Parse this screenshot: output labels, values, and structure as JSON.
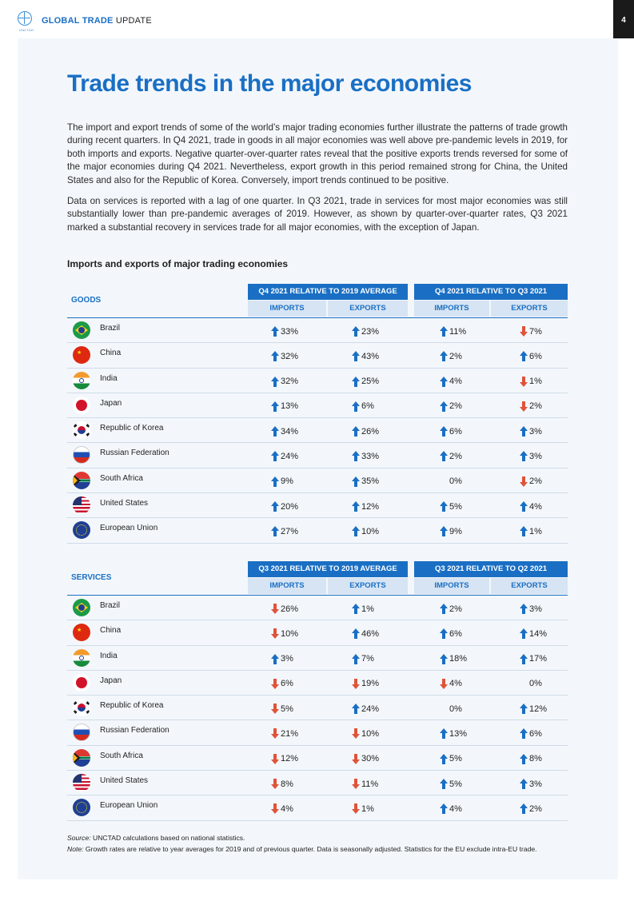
{
  "header": {
    "logo_text": "UNCTAD",
    "brand_bold": "GLOBAL TRADE",
    "brand_thin": " UPDATE",
    "page_number": "4"
  },
  "title": "Trade trends in the major economies",
  "paragraphs": [
    "The import and export trends of some of the world’s major trading economies further illustrate the patterns of trade growth during recent quarters. In Q4 2021, trade in goods in all major economies was well above pre-pandemic levels in 2019, for both imports and exports. Negative quarter-over-quarter rates reveal that the positive exports trends reversed for some of the major economies during Q4 2021. Nevertheless, export growth in this period remained strong for China, the United States and also for the Republic of Korea. Conversely, import trends continued to be positive.",
    "Data on services is reported with a lag of one quarter. In Q3 2021, trade in services for most major economies was still substantially lower than pre-pandemic averages of 2019. However, as shown by quarter-over-quarter rates, Q3 2021 marked a substantial recovery in services trade for all major economies, with the exception of Japan."
  ],
  "table_title": "Imports and exports of major trading economies",
  "goods": {
    "label": "GOODS",
    "group1": "Q4 2021 RELATIVE TO 2019 AVERAGE",
    "group2": "Q4 2021 RELATIVE TO Q3 2021",
    "sub": [
      "IMPORTS",
      "EXPORTS",
      "IMPORTS",
      "EXPORTS"
    ],
    "rows": [
      {
        "name": "Brazil",
        "flag": "brazil",
        "cells": [
          {
            "v": "33%",
            "d": "up"
          },
          {
            "v": "23%",
            "d": "up"
          },
          {
            "v": "11%",
            "d": "up"
          },
          {
            "v": "7%",
            "d": "down"
          }
        ]
      },
      {
        "name": "China",
        "flag": "china",
        "cells": [
          {
            "v": "32%",
            "d": "up"
          },
          {
            "v": "43%",
            "d": "up"
          },
          {
            "v": "2%",
            "d": "up"
          },
          {
            "v": "6%",
            "d": "up"
          }
        ]
      },
      {
        "name": "India",
        "flag": "india",
        "cells": [
          {
            "v": "32%",
            "d": "up"
          },
          {
            "v": "25%",
            "d": "up"
          },
          {
            "v": "4%",
            "d": "up"
          },
          {
            "v": "1%",
            "d": "down"
          }
        ]
      },
      {
        "name": "Japan",
        "flag": "japan",
        "cells": [
          {
            "v": "13%",
            "d": "up"
          },
          {
            "v": "6%",
            "d": "up"
          },
          {
            "v": "2%",
            "d": "up"
          },
          {
            "v": "2%",
            "d": "down"
          }
        ]
      },
      {
        "name": "Republic of Korea",
        "flag": "korea",
        "cells": [
          {
            "v": "34%",
            "d": "up"
          },
          {
            "v": "26%",
            "d": "up"
          },
          {
            "v": "6%",
            "d": "up"
          },
          {
            "v": "3%",
            "d": "up"
          }
        ]
      },
      {
        "name": "Russian Federation",
        "flag": "russia",
        "cells": [
          {
            "v": "24%",
            "d": "up"
          },
          {
            "v": "33%",
            "d": "up"
          },
          {
            "v": "2%",
            "d": "up"
          },
          {
            "v": "3%",
            "d": "up"
          }
        ]
      },
      {
        "name": "South Africa",
        "flag": "sa",
        "cells": [
          {
            "v": "9%",
            "d": "up"
          },
          {
            "v": "35%",
            "d": "up"
          },
          {
            "v": "0%",
            "d": "none"
          },
          {
            "v": "2%",
            "d": "down"
          }
        ]
      },
      {
        "name": "United States",
        "flag": "us",
        "cells": [
          {
            "v": "20%",
            "d": "up"
          },
          {
            "v": "12%",
            "d": "up"
          },
          {
            "v": "5%",
            "d": "up"
          },
          {
            "v": "4%",
            "d": "up"
          }
        ]
      },
      {
        "name": "European Union",
        "flag": "eu",
        "cells": [
          {
            "v": "27%",
            "d": "up"
          },
          {
            "v": "10%",
            "d": "up"
          },
          {
            "v": "9%",
            "d": "up"
          },
          {
            "v": "1%",
            "d": "up"
          }
        ]
      }
    ]
  },
  "services": {
    "label": "SERVICES",
    "group1": "Q3 2021 RELATIVE TO 2019 AVERAGE",
    "group2": "Q3 2021 RELATIVE TO Q2 2021",
    "sub": [
      "IMPORTS",
      "EXPORTS",
      "IMPORTS",
      "EXPORTS"
    ],
    "rows": [
      {
        "name": "Brazil",
        "flag": "brazil",
        "cells": [
          {
            "v": "26%",
            "d": "down"
          },
          {
            "v": "1%",
            "d": "up"
          },
          {
            "v": "2%",
            "d": "up"
          },
          {
            "v": "3%",
            "d": "up"
          }
        ]
      },
      {
        "name": "China",
        "flag": "china",
        "cells": [
          {
            "v": "10%",
            "d": "down"
          },
          {
            "v": "46%",
            "d": "up"
          },
          {
            "v": "6%",
            "d": "up"
          },
          {
            "v": "14%",
            "d": "up"
          }
        ]
      },
      {
        "name": "India",
        "flag": "india",
        "cells": [
          {
            "v": "3%",
            "d": "up"
          },
          {
            "v": "7%",
            "d": "up"
          },
          {
            "v": "18%",
            "d": "up"
          },
          {
            "v": "17%",
            "d": "up"
          }
        ]
      },
      {
        "name": "Japan",
        "flag": "japan",
        "cells": [
          {
            "v": "6%",
            "d": "down"
          },
          {
            "v": "19%",
            "d": "down"
          },
          {
            "v": "4%",
            "d": "down"
          },
          {
            "v": "0%",
            "d": "none"
          }
        ]
      },
      {
        "name": "Republic of Korea",
        "flag": "korea",
        "cells": [
          {
            "v": "5%",
            "d": "down"
          },
          {
            "v": "24%",
            "d": "up"
          },
          {
            "v": "0%",
            "d": "none"
          },
          {
            "v": "12%",
            "d": "up"
          }
        ]
      },
      {
        "name": "Russian Federation",
        "flag": "russia",
        "cells": [
          {
            "v": "21%",
            "d": "down"
          },
          {
            "v": "10%",
            "d": "down"
          },
          {
            "v": "13%",
            "d": "up"
          },
          {
            "v": "6%",
            "d": "up"
          }
        ]
      },
      {
        "name": "South Africa",
        "flag": "sa",
        "cells": [
          {
            "v": "12%",
            "d": "down"
          },
          {
            "v": "30%",
            "d": "down"
          },
          {
            "v": "5%",
            "d": "up"
          },
          {
            "v": "8%",
            "d": "up"
          }
        ]
      },
      {
        "name": "United States",
        "flag": "us",
        "cells": [
          {
            "v": "8%",
            "d": "down"
          },
          {
            "v": "11%",
            "d": "down"
          },
          {
            "v": "5%",
            "d": "up"
          },
          {
            "v": "3%",
            "d": "up"
          }
        ]
      },
      {
        "name": "European Union",
        "flag": "eu",
        "cells": [
          {
            "v": "4%",
            "d": "down"
          },
          {
            "v": "1%",
            "d": "down"
          },
          {
            "v": "4%",
            "d": "up"
          },
          {
            "v": "2%",
            "d": "up"
          }
        ]
      }
    ]
  },
  "footnotes": {
    "source_label": "Source:",
    "source_text": " UNCTAD calculations based on national statistics.",
    "note_label": "Note:",
    "note_text": " Growth rates are relative to year averages for 2019 and of previous quarter. Data is seasonally adjusted. Statistics for the EU exclude intra-EU trade."
  },
  "colors": {
    "accent": "#1a6fc4",
    "up_arrow": "#1a6fc4",
    "down_arrow": "#e0533a",
    "panel_bg": "#f3f7fb"
  }
}
